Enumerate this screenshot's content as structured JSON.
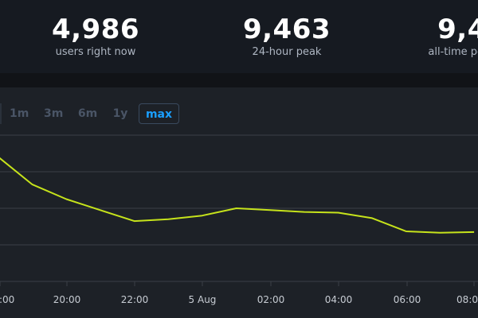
{
  "stats": [
    {
      "value": "4,986",
      "label": "users right now"
    },
    {
      "value": "9,463",
      "label": "24-hour peak"
    },
    {
      "value": "9,4",
      "label": "all-time peak"
    }
  ],
  "ranges": [
    {
      "label": "",
      "active": false
    },
    {
      "label": "1m",
      "active": false
    },
    {
      "label": "3m",
      "active": false
    },
    {
      "label": "6m",
      "active": false
    },
    {
      "label": "1y",
      "active": false
    },
    {
      "label": "max",
      "active": true
    }
  ],
  "colors": {
    "line": "#c6e31b",
    "accent": "#1a9fff",
    "gridline": "#3a3f47"
  },
  "chart_data": {
    "type": "line",
    "x_tick_labels": [
      ":00",
      "20:00",
      "22:00",
      "5 Aug",
      "02:00",
      "04:00",
      "06:00",
      "08:0"
    ],
    "series": [
      {
        "name": "",
        "points": [
          [
            "18:00",
            8400
          ],
          [
            "19:00",
            7650
          ],
          [
            "20:00",
            7250
          ],
          [
            "21:00",
            6950
          ],
          [
            "22:00",
            6650
          ],
          [
            "23:00",
            6700
          ],
          [
            "00:00",
            6800
          ],
          [
            "01:00",
            7000
          ],
          [
            "02:00",
            6950
          ],
          [
            "03:00",
            6900
          ],
          [
            "04:00",
            6880
          ],
          [
            "05:00",
            6730
          ],
          [
            "06:00",
            6370
          ],
          [
            "07:00",
            6330
          ],
          [
            "08:00",
            6350
          ]
        ]
      }
    ],
    "grid": true
  }
}
